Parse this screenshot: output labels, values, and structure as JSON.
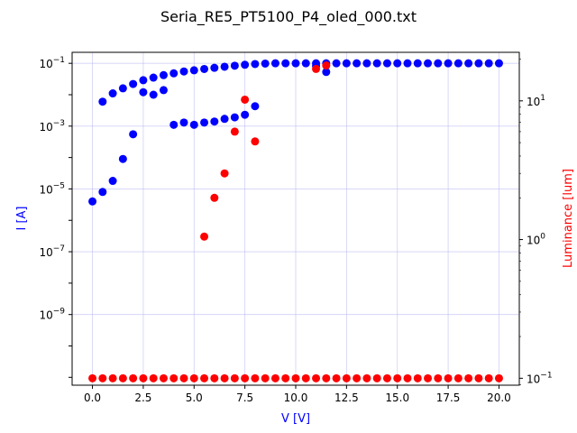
{
  "chart_data": {
    "type": "scatter",
    "title": "Seria_RE5_PT5100_P4_oled_000.txt",
    "xlabel": "V [V]",
    "ylabel": "I [A]",
    "y2label": "Luminance [lum]",
    "xlim": [
      -1,
      21
    ],
    "ylim_log10": [
      -11.25,
      -0.65
    ],
    "y2lim_log10": [
      -1.05,
      1.35
    ],
    "x_ticks": [
      {
        "value": 0.0,
        "label": "0.0"
      },
      {
        "value": 2.5,
        "label": "2.5"
      },
      {
        "value": 5.0,
        "label": "5.0"
      },
      {
        "value": 7.5,
        "label": "7.5"
      },
      {
        "value": 10.0,
        "label": "10.0"
      },
      {
        "value": 12.5,
        "label": "12.5"
      },
      {
        "value": 15.0,
        "label": "15.0"
      },
      {
        "value": 17.5,
        "label": "17.5"
      },
      {
        "value": 20.0,
        "label": "20.0"
      }
    ],
    "y_ticks": [
      {
        "exp": -1,
        "base": "10",
        "sup": "−1"
      },
      {
        "exp": -3,
        "base": "10",
        "sup": "−3"
      },
      {
        "exp": -5,
        "base": "10",
        "sup": "−5"
      },
      {
        "exp": -7,
        "base": "10",
        "sup": "−7"
      },
      {
        "exp": -9,
        "base": "10",
        "sup": "−9"
      }
    ],
    "y2_ticks": [
      {
        "exp": 1,
        "base": "10",
        "sup": "1"
      },
      {
        "exp": 0,
        "base": "10",
        "sup": "0"
      },
      {
        "exp": -1,
        "base": "10",
        "sup": "−1"
      }
    ],
    "grid": true,
    "colors": {
      "current": "#0000ff",
      "luminance": "#ff0000",
      "grid": "#b0b0f0",
      "xlabel": "#0000ff",
      "ylabel": "#0000ff",
      "y2label": "#ff0000"
    },
    "series": [
      {
        "axis": "left",
        "color": "#0000ff",
        "points": [
          [
            0,
            4e-06
          ],
          [
            0.5,
            8e-06
          ],
          [
            1,
            1.8e-05
          ],
          [
            1.5,
            9e-05
          ],
          [
            2,
            0.00055
          ],
          [
            0.5,
            0.006
          ],
          [
            1,
            0.011
          ],
          [
            1.5,
            0.016
          ],
          [
            2,
            0.022
          ],
          [
            2.5,
            0.029
          ],
          [
            3,
            0.035
          ],
          [
            3.5,
            0.042
          ],
          [
            4,
            0.048
          ],
          [
            4.5,
            0.055
          ],
          [
            5,
            0.06
          ],
          [
            5.5,
            0.066
          ],
          [
            6,
            0.072
          ],
          [
            6.5,
            0.078
          ],
          [
            7,
            0.084
          ],
          [
            7.5,
            0.09
          ],
          [
            8,
            0.095
          ],
          [
            8.5,
            0.098
          ],
          [
            9,
            0.1
          ],
          [
            9.5,
            0.1
          ],
          [
            10,
            0.1
          ],
          [
            10.5,
            0.1
          ],
          [
            11,
            0.1
          ],
          [
            11.5,
            0.1
          ],
          [
            12,
            0.1
          ],
          [
            12.5,
            0.1
          ],
          [
            13,
            0.1
          ],
          [
            13.5,
            0.1
          ],
          [
            14,
            0.1
          ],
          [
            14.5,
            0.1
          ],
          [
            15,
            0.1
          ],
          [
            15.5,
            0.1
          ],
          [
            16,
            0.1
          ],
          [
            16.5,
            0.1
          ],
          [
            17,
            0.1
          ],
          [
            17.5,
            0.1
          ],
          [
            18,
            0.1
          ],
          [
            18.5,
            0.1
          ],
          [
            19,
            0.1
          ],
          [
            19.5,
            0.1
          ],
          [
            20,
            0.1
          ],
          [
            2.5,
            0.012
          ],
          [
            3,
            0.01
          ],
          [
            3.5,
            0.014
          ],
          [
            4,
            0.0011
          ],
          [
            4.5,
            0.0013
          ],
          [
            5,
            0.0011
          ],
          [
            5.5,
            0.0013
          ],
          [
            6,
            0.0014
          ],
          [
            6.5,
            0.0017
          ],
          [
            7,
            0.0019
          ],
          [
            7.5,
            0.0023
          ],
          [
            8,
            0.0043
          ],
          [
            11,
            0.082
          ],
          [
            11.5,
            0.053
          ]
        ]
      },
      {
        "axis": "right",
        "color": "#ff0000",
        "points": [
          [
            0,
            0.1
          ],
          [
            0.5,
            0.1
          ],
          [
            1,
            0.1
          ],
          [
            1.5,
            0.1
          ],
          [
            2,
            0.1
          ],
          [
            2.5,
            0.1
          ],
          [
            3,
            0.1
          ],
          [
            3.5,
            0.1
          ],
          [
            4,
            0.1
          ],
          [
            4.5,
            0.1
          ],
          [
            5,
            0.1
          ],
          [
            5.5,
            0.1
          ],
          [
            6,
            0.1
          ],
          [
            6.5,
            0.1
          ],
          [
            7,
            0.1
          ],
          [
            7.5,
            0.1
          ],
          [
            8,
            0.1
          ],
          [
            8.5,
            0.1
          ],
          [
            9,
            0.1
          ],
          [
            9.5,
            0.1
          ],
          [
            10,
            0.1
          ],
          [
            10.5,
            0.1
          ],
          [
            11,
            0.1
          ],
          [
            11.5,
            0.1
          ],
          [
            12,
            0.1
          ],
          [
            12.5,
            0.1
          ],
          [
            13,
            0.1
          ],
          [
            13.5,
            0.1
          ],
          [
            14,
            0.1
          ],
          [
            14.5,
            0.1
          ],
          [
            15,
            0.1
          ],
          [
            15.5,
            0.1
          ],
          [
            16,
            0.1
          ],
          [
            16.5,
            0.1
          ],
          [
            17,
            0.1
          ],
          [
            17.5,
            0.1
          ],
          [
            18,
            0.1
          ],
          [
            18.5,
            0.1
          ],
          [
            19,
            0.1
          ],
          [
            19.5,
            0.1
          ],
          [
            20,
            0.1
          ],
          [
            5.5,
            1.05
          ],
          [
            6,
            2
          ],
          [
            6.5,
            3
          ],
          [
            7,
            6
          ],
          [
            7.5,
            10.2
          ],
          [
            8,
            5.1
          ],
          [
            11,
            17
          ],
          [
            11.5,
            18
          ]
        ]
      }
    ]
  }
}
